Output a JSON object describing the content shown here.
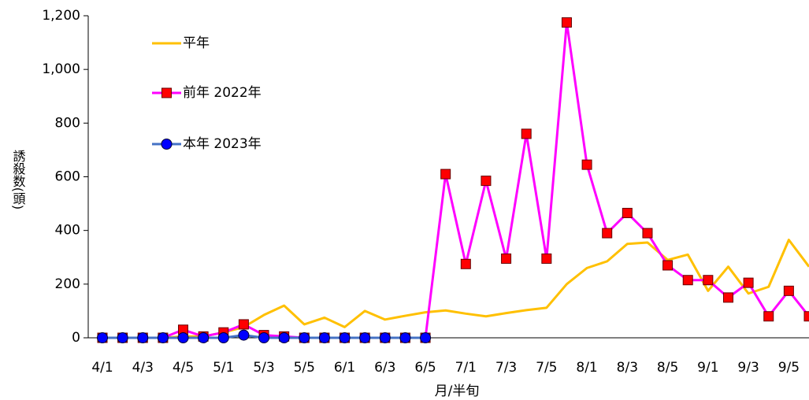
{
  "chart_data": {
    "type": "line",
    "x_label": "月/半旬",
    "y_label": "誘殺数(頭)",
    "categories": [
      "4/1",
      null,
      "4/3",
      null,
      "4/5",
      null,
      "5/1",
      null,
      "5/3",
      null,
      "5/5",
      null,
      "6/1",
      null,
      "6/3",
      null,
      "6/5",
      null,
      "7/1",
      null,
      "7/3",
      null,
      "7/5",
      null,
      "8/1",
      null,
      "8/3",
      null,
      "8/5",
      null,
      "9/1",
      null,
      "9/3",
      null,
      "9/5",
      null
    ],
    "series": [
      {
        "name": "平年",
        "color": "#ffc000",
        "marker": "none",
        "values": [
          0,
          0,
          0,
          0,
          5,
          5,
          20,
          40,
          85,
          120,
          50,
          75,
          40,
          100,
          68,
          82,
          95,
          102,
          90,
          80,
          92,
          103,
          112,
          200,
          260,
          285,
          350,
          355,
          290,
          310,
          175,
          265,
          165,
          190,
          365,
          265
        ]
      },
      {
        "name": "前年 2022年",
        "color": "#ff00ff",
        "marker": "square",
        "marker_color": "#ff0000",
        "values": [
          0,
          0,
          0,
          0,
          30,
          5,
          20,
          50,
          10,
          5,
          0,
          0,
          0,
          0,
          0,
          0,
          0,
          610,
          275,
          585,
          295,
          760,
          295,
          1175,
          645,
          390,
          465,
          390,
          270,
          215,
          215,
          150,
          205,
          80,
          175,
          80
        ]
      },
      {
        "name": "本年 2023年",
        "color": "#4472c4",
        "marker": "circle",
        "marker_color": "#0000ff",
        "values": [
          0,
          0,
          0,
          0,
          0,
          0,
          0,
          10,
          0,
          0,
          0,
          0,
          0,
          0,
          0,
          0,
          0,
          null,
          null,
          null,
          null,
          null,
          null,
          null,
          null,
          null,
          null,
          null,
          null,
          null,
          null,
          null,
          null,
          null,
          null,
          null
        ]
      }
    ],
    "ylim": [
      0,
      1200
    ],
    "yticks": [
      0,
      200,
      400,
      600,
      800,
      {
        "value": 1000,
        "label": "1,000"
      },
      {
        "value": 1200,
        "label": "1,200"
      }
    ],
    "grid": false,
    "legend": "upper left"
  }
}
